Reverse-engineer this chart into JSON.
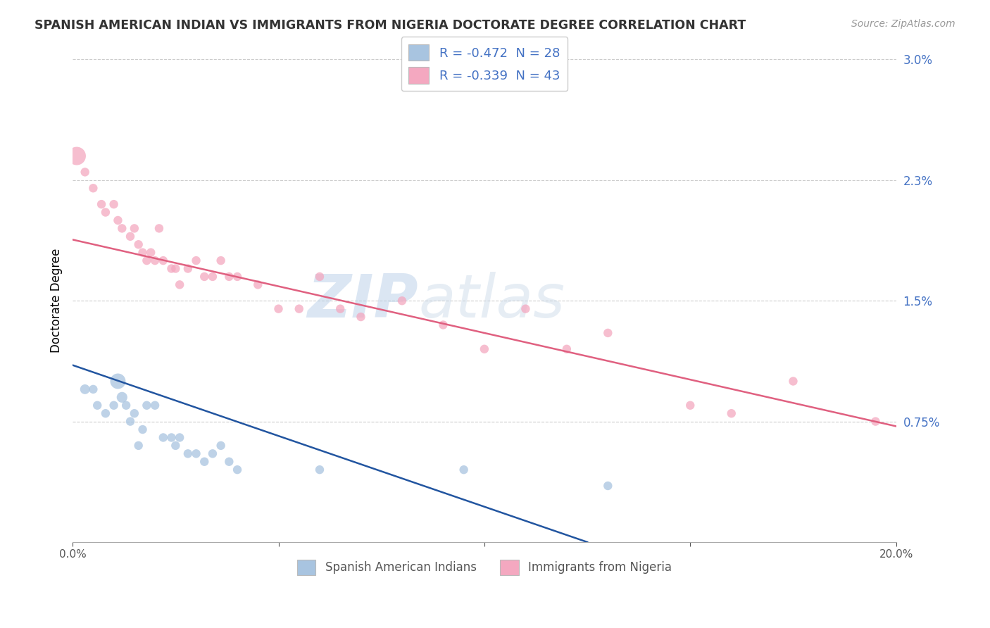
{
  "title": "SPANISH AMERICAN INDIAN VS IMMIGRANTS FROM NIGERIA DOCTORATE DEGREE CORRELATION CHART",
  "source": "Source: ZipAtlas.com",
  "ylabel": "Doctorate Degree",
  "xlim": [
    0.0,
    0.2
  ],
  "ylim": [
    0.0,
    0.03
  ],
  "yticks": [
    0.0,
    0.0075,
    0.015,
    0.0225,
    0.03
  ],
  "ytick_labels": [
    "",
    "0.75%",
    "1.5%",
    "2.3%",
    "3.0%"
  ],
  "xticks": [
    0.0,
    0.05,
    0.1,
    0.15,
    0.2
  ],
  "xtick_labels": [
    "0.0%",
    "",
    "",
    "",
    "20.0%"
  ],
  "blue_R": -0.472,
  "blue_N": 28,
  "pink_R": -0.339,
  "pink_N": 43,
  "blue_color": "#a8c4e0",
  "pink_color": "#f4a8c0",
  "blue_line_color": "#2255a0",
  "pink_line_color": "#e06080",
  "legend_blue_fill": "#a8c4e0",
  "legend_pink_fill": "#f4a8c0",
  "watermark_zip": "ZIP",
  "watermark_atlas": "atlas",
  "blue_line_x0": 0.0,
  "blue_line_y0": 0.011,
  "blue_line_x1": 0.125,
  "blue_line_y1": 0.0,
  "pink_line_x0": 0.0,
  "pink_line_y0": 0.0188,
  "pink_line_x1": 0.2,
  "pink_line_y1": 0.0072,
  "blue_scatter_x": [
    0.003,
    0.005,
    0.006,
    0.008,
    0.01,
    0.011,
    0.012,
    0.013,
    0.014,
    0.015,
    0.016,
    0.017,
    0.018,
    0.02,
    0.022,
    0.024,
    0.025,
    0.026,
    0.028,
    0.03,
    0.032,
    0.034,
    0.036,
    0.038,
    0.04,
    0.06,
    0.095,
    0.13
  ],
  "blue_scatter_y": [
    0.0095,
    0.0095,
    0.0085,
    0.008,
    0.0085,
    0.01,
    0.009,
    0.0085,
    0.0075,
    0.008,
    0.006,
    0.007,
    0.0085,
    0.0085,
    0.0065,
    0.0065,
    0.006,
    0.0065,
    0.0055,
    0.0055,
    0.005,
    0.0055,
    0.006,
    0.005,
    0.0045,
    0.0045,
    0.0045,
    0.0035
  ],
  "blue_scatter_sizes": [
    100,
    80,
    80,
    80,
    80,
    250,
    120,
    80,
    80,
    80,
    80,
    80,
    80,
    80,
    80,
    80,
    80,
    80,
    80,
    80,
    80,
    80,
    80,
    80,
    80,
    80,
    80,
    80
  ],
  "pink_scatter_x": [
    0.001,
    0.003,
    0.005,
    0.007,
    0.008,
    0.01,
    0.011,
    0.012,
    0.014,
    0.015,
    0.016,
    0.017,
    0.018,
    0.019,
    0.02,
    0.021,
    0.022,
    0.024,
    0.025,
    0.026,
    0.028,
    0.03,
    0.032,
    0.034,
    0.036,
    0.038,
    0.04,
    0.045,
    0.05,
    0.055,
    0.06,
    0.065,
    0.07,
    0.08,
    0.09,
    0.1,
    0.11,
    0.12,
    0.13,
    0.15,
    0.16,
    0.175,
    0.195
  ],
  "pink_scatter_y": [
    0.024,
    0.023,
    0.022,
    0.021,
    0.0205,
    0.021,
    0.02,
    0.0195,
    0.019,
    0.0195,
    0.0185,
    0.018,
    0.0175,
    0.018,
    0.0175,
    0.0195,
    0.0175,
    0.017,
    0.017,
    0.016,
    0.017,
    0.0175,
    0.0165,
    0.0165,
    0.0175,
    0.0165,
    0.0165,
    0.016,
    0.0145,
    0.0145,
    0.0165,
    0.0145,
    0.014,
    0.015,
    0.0135,
    0.012,
    0.0145,
    0.012,
    0.013,
    0.0085,
    0.008,
    0.01,
    0.0075
  ],
  "pink_scatter_sizes": [
    350,
    80,
    80,
    80,
    80,
    80,
    80,
    80,
    80,
    80,
    80,
    80,
    80,
    80,
    80,
    80,
    80,
    80,
    80,
    80,
    80,
    80,
    80,
    80,
    80,
    80,
    80,
    80,
    80,
    80,
    80,
    80,
    80,
    80,
    80,
    80,
    80,
    80,
    80,
    80,
    80,
    80,
    80
  ]
}
